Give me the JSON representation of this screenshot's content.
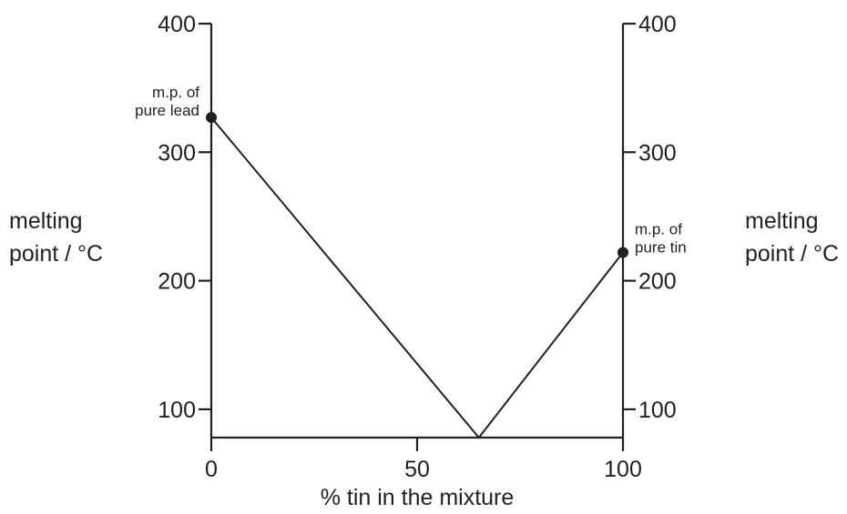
{
  "chart_data": {
    "type": "line",
    "title": "",
    "xlabel": "% tin in the mixture",
    "ylabel_left": [
      "melting",
      "point / °C"
    ],
    "ylabel_right": [
      "melting",
      "point / °C"
    ],
    "xlim": [
      0,
      100
    ],
    "ylim": [
      78,
      400
    ],
    "xticks": [
      0,
      50,
      100
    ],
    "yticks": [
      100,
      200,
      300,
      400
    ],
    "grid": false,
    "series": [
      {
        "x": [
          0,
          65,
          100
        ],
        "y": [
          327,
          78,
          222
        ]
      }
    ],
    "annotations": [
      {
        "x": 0,
        "y": 327,
        "lines": [
          "m.p. of",
          "pure lead"
        ]
      },
      {
        "x": 100,
        "y": 222,
        "lines": [
          "m.p. of",
          "pure tin"
        ]
      }
    ]
  }
}
